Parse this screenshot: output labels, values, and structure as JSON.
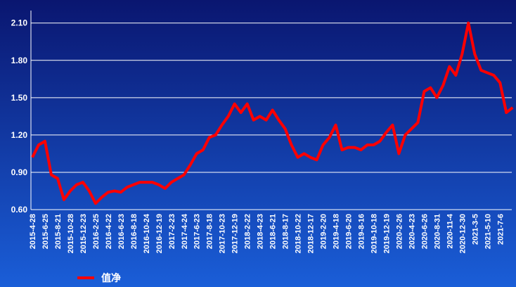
{
  "chart_data": {
    "type": "line",
    "categories": [
      "2015-4-28",
      null,
      "2015-6-25",
      null,
      "2015-8-21",
      null,
      "2015-10-28",
      null,
      "2015-12-23",
      null,
      "2016-2-25",
      null,
      "2016-4-22",
      null,
      "2016-6-23",
      null,
      "2016-8-18",
      null,
      "2016-10-24",
      null,
      "2016-12-19",
      null,
      "2017-2-23",
      null,
      "2017-4-24",
      null,
      "2017-6-23",
      null,
      "2017-8-18",
      null,
      "2017-10-23",
      null,
      "2017-12-19",
      null,
      "2018-2-22",
      null,
      "2018-4-23",
      null,
      "2018-6-21",
      null,
      "2018-8-17",
      null,
      "2018-10-22",
      null,
      "2018-12-17",
      null,
      "2019-2-20",
      null,
      "2019-4-18",
      null,
      "2019-6-20",
      null,
      "2019-8-16",
      null,
      "2019-10-18",
      null,
      "2019-12-19",
      null,
      "2020-2-26",
      null,
      "2020-4-23",
      null,
      "2020-6-26",
      null,
      "2020-8-31",
      null,
      "2020-11-4",
      null,
      "2020-12-30",
      null,
      "2021-3-5",
      null,
      "2021-5-10",
      null,
      "2021-7-6",
      null,
      null
    ],
    "series": [
      {
        "name": "值净",
        "color": "#ff0000",
        "values": [
          1.02,
          1.12,
          1.15,
          0.88,
          0.85,
          0.68,
          0.75,
          0.8,
          0.82,
          0.75,
          0.65,
          0.7,
          0.74,
          0.75,
          0.74,
          0.78,
          0.8,
          0.82,
          0.82,
          0.82,
          0.8,
          0.77,
          0.82,
          0.85,
          0.88,
          0.96,
          1.05,
          1.08,
          1.18,
          1.2,
          1.28,
          1.35,
          1.45,
          1.38,
          1.45,
          1.32,
          1.35,
          1.32,
          1.4,
          1.32,
          1.25,
          1.12,
          1.02,
          1.05,
          1.02,
          1.0,
          1.12,
          1.18,
          1.28,
          1.08,
          1.1,
          1.1,
          1.08,
          1.12,
          1.12,
          1.15,
          1.22,
          1.28,
          1.05,
          1.2,
          1.25,
          1.3,
          1.55,
          1.58,
          1.5,
          1.6,
          1.75,
          1.68,
          1.85,
          2.1,
          1.85,
          1.72,
          1.7,
          1.68,
          1.62,
          1.38,
          1.42
        ]
      }
    ],
    "ylim": [
      0.6,
      2.2
    ],
    "yticks": [
      {
        "value": 0.6,
        "label": "0.60"
      },
      {
        "value": 0.9,
        "label": "0.90"
      },
      {
        "value": 1.2,
        "label": "1.20"
      },
      {
        "value": 1.5,
        "label": "1.50"
      },
      {
        "value": 1.8,
        "label": "1.80"
      },
      {
        "value": 2.1,
        "label": "2.10"
      }
    ],
    "grid": true,
    "legend": "bottom-left"
  }
}
